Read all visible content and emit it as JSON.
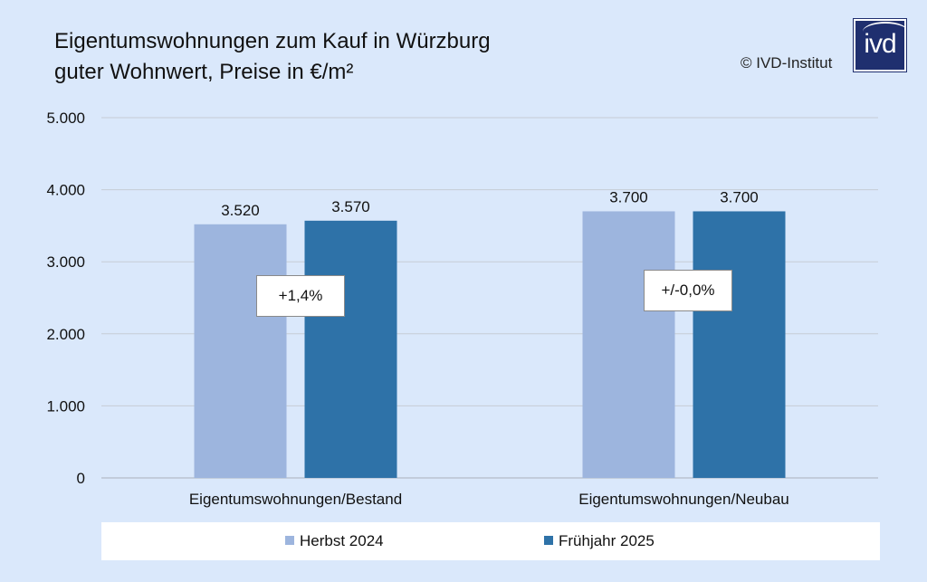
{
  "header": {
    "title_line1": "Eigentumswohnungen zum Kauf in Würzburg",
    "title_line2": "guter Wohnwert, Preise in €/m²",
    "copyright": "© IVD-Institut",
    "logo_text": "ivd"
  },
  "colors": {
    "background": "#dae8fb",
    "series_0": "#9db5de",
    "series_1": "#2e72a8",
    "grid": "#c6ccd6",
    "logo": "#1f2f6f"
  },
  "callouts": [
    "+1,4%",
    "+/-0,0%"
  ],
  "chart_data": {
    "type": "bar",
    "title": "Eigentumswohnungen zum Kauf in Würzburg guter Wohnwert, Preise in €/m²",
    "categories": [
      "Eigentumswohnungen/Bestand",
      "Eigentumswohnungen/Neubau"
    ],
    "series": [
      {
        "name": "Herbst 2024",
        "values": [
          3520,
          3700
        ],
        "labels": [
          "3.520",
          "3.700"
        ]
      },
      {
        "name": "Frühjahr 2025",
        "values": [
          3570,
          3700
        ],
        "labels": [
          "3.570",
          "3.700"
        ]
      }
    ],
    "ylim": [
      0,
      5000
    ],
    "yticks": [
      0,
      1000,
      2000,
      3000,
      4000,
      5000
    ],
    "ytick_labels": [
      "0",
      "1.000",
      "2.000",
      "3.000",
      "4.000",
      "5.000"
    ],
    "grid": true,
    "legend_position": "bottom"
  }
}
